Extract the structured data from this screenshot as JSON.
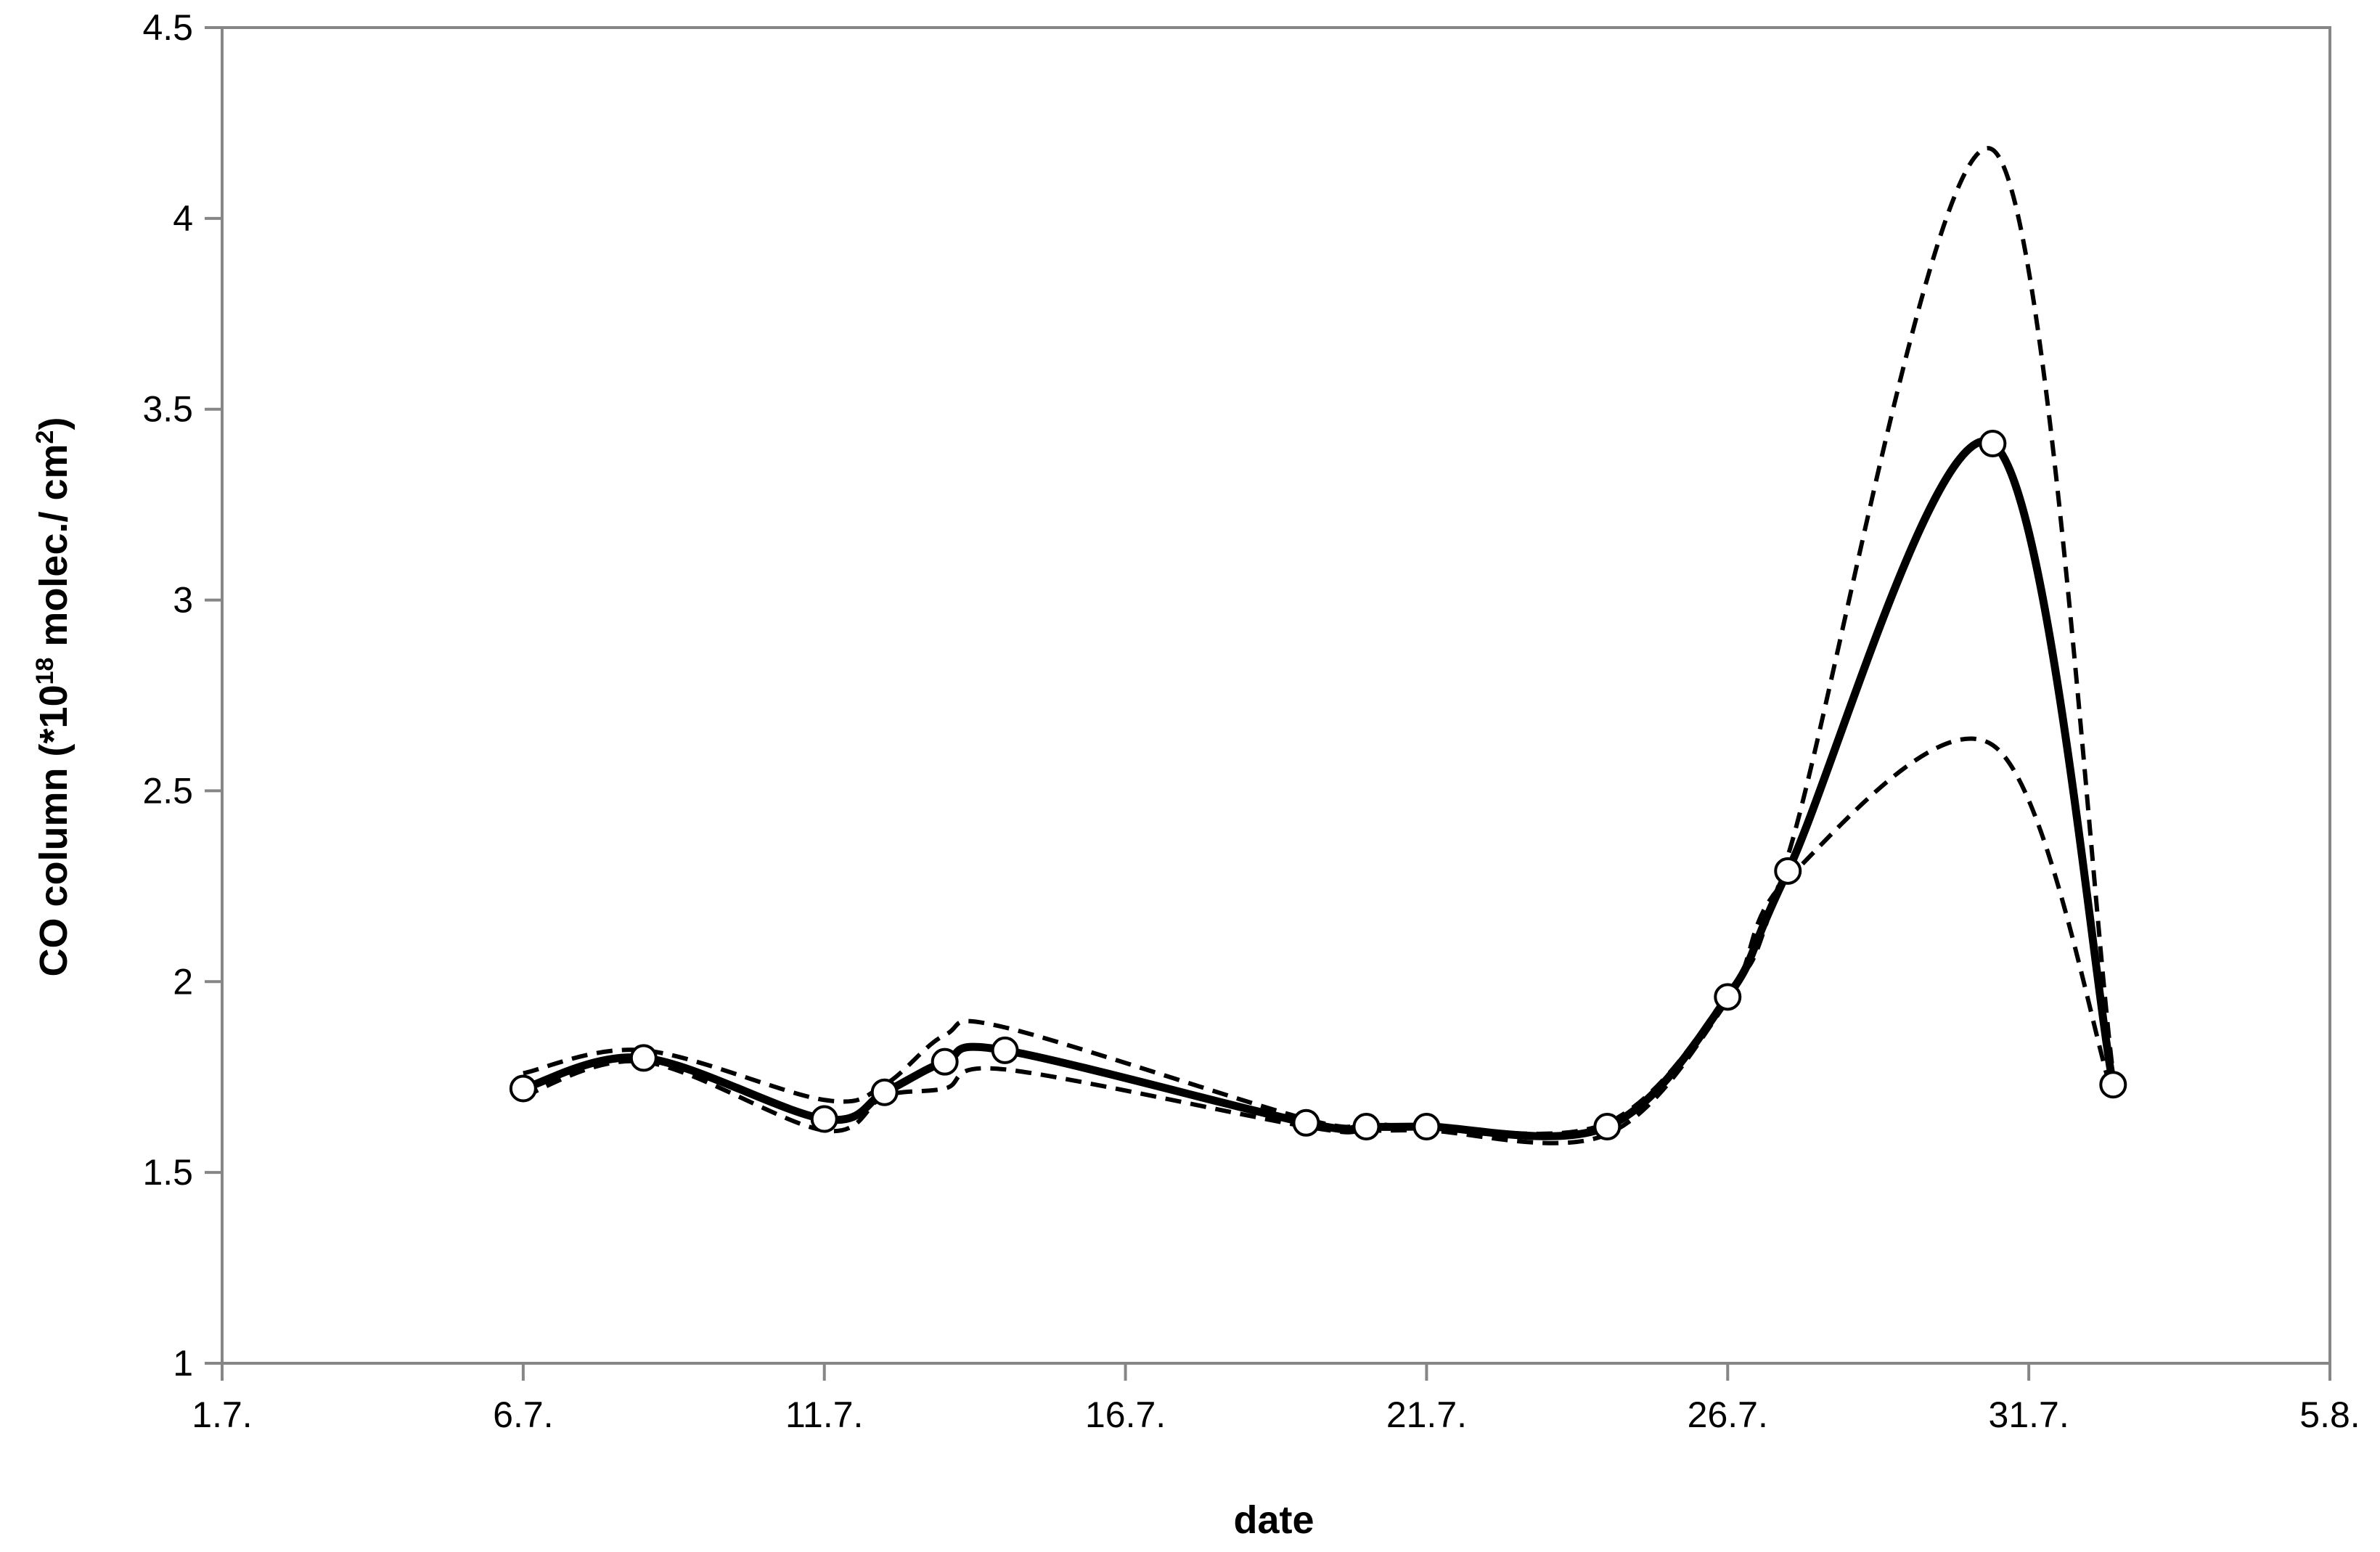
{
  "chart_data": {
    "type": "line",
    "xlabel": "date",
    "ylabel": {
      "prefix": "CO column (*10",
      "sup1": "18",
      "middle": " molec./ cm",
      "sup2": "2",
      "suffix": ")"
    },
    "xlim": [
      1,
      36
    ],
    "ylim": [
      1,
      4.5
    ],
    "x_ticks": [
      {
        "value": 1,
        "label": "1.7."
      },
      {
        "value": 6,
        "label": "6.7."
      },
      {
        "value": 11,
        "label": "11.7."
      },
      {
        "value": 16,
        "label": "16.7."
      },
      {
        "value": 21,
        "label": "21.7."
      },
      {
        "value": 26,
        "label": "26.7."
      },
      {
        "value": 31,
        "label": "31.7."
      },
      {
        "value": 36,
        "label": "5.8."
      }
    ],
    "y_ticks": [
      {
        "value": 1,
        "label": "1"
      },
      {
        "value": 1.5,
        "label": "1.5"
      },
      {
        "value": 2,
        "label": "2"
      },
      {
        "value": 2.5,
        "label": "2.5"
      },
      {
        "value": 3,
        "label": "3"
      },
      {
        "value": 3.5,
        "label": "3.5"
      },
      {
        "value": 4,
        "label": "4"
      },
      {
        "value": 4.5,
        "label": "4.5"
      }
    ],
    "grid": false,
    "legend": "none",
    "series": [
      {
        "style": "solid",
        "markers": "circle",
        "color": "#000000",
        "x": [
          6,
          8,
          11,
          12,
          13,
          14,
          19,
          20,
          21,
          24,
          26,
          27,
          30.4,
          32.4
        ],
        "y": [
          1.72,
          1.8,
          1.64,
          1.71,
          1.79,
          1.82,
          1.63,
          1.62,
          1.62,
          1.62,
          1.96,
          2.29,
          3.41,
          1.73
        ]
      },
      {
        "style": "dashed",
        "markers": "none",
        "color": "#000000",
        "x": [
          6,
          8,
          11,
          12,
          13,
          14,
          19,
          20,
          21,
          24,
          26,
          27,
          30.4,
          32.4
        ],
        "y": [
          1.76,
          1.82,
          1.69,
          1.73,
          1.86,
          1.88,
          1.64,
          1.63,
          1.62,
          1.63,
          1.97,
          2.33,
          4.18,
          1.76
        ]
      },
      {
        "style": "dashed",
        "markers": "none",
        "color": "#000000",
        "x": [
          6,
          8,
          11,
          12,
          13,
          14,
          19,
          20,
          21,
          24,
          26,
          27,
          30.4,
          32.4
        ],
        "y": [
          1.7,
          1.79,
          1.61,
          1.7,
          1.72,
          1.77,
          1.62,
          1.61,
          1.61,
          1.6,
          1.95,
          2.27,
          2.62,
          1.7
        ]
      }
    ]
  }
}
